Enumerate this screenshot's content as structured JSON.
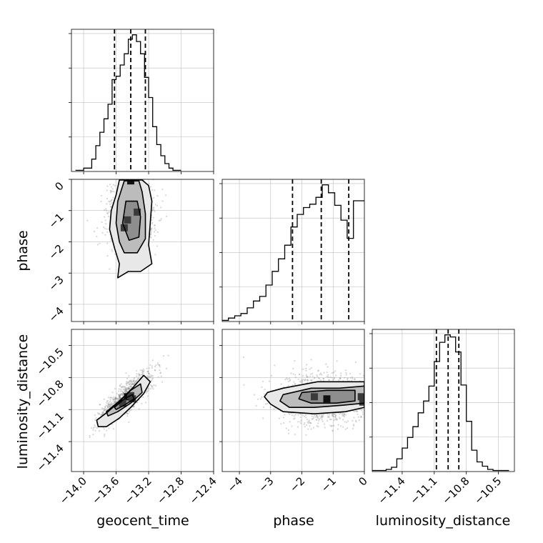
{
  "chart_data": {
    "type": "corner",
    "parameters": [
      "geocent_time",
      "phase",
      "luminosity_distance"
    ],
    "axis_labels": {
      "x": [
        "geocent_time",
        "phase",
        "luminosity_distance"
      ],
      "y": [
        "phase",
        "luminosity_distance"
      ]
    },
    "ranges": {
      "geocent_time": [
        -14.15,
        -12.4
      ],
      "phase": [
        -4.55,
        0.0
      ],
      "luminosity_distance": [
        -11.68,
        -10.35
      ]
    },
    "ticks": {
      "geocent_time": [
        -14.0,
        -13.6,
        -13.2,
        -12.8,
        -12.4
      ],
      "phase": [
        -4,
        -3,
        -2,
        -1,
        0
      ],
      "luminosity_distance": [
        -11.4,
        -11.1,
        -10.8,
        -10.5
      ]
    },
    "tick_labels": {
      "geocent_time": [
        "−14.0",
        "−13.6",
        "−13.2",
        "−12.8",
        "−12.4"
      ],
      "phase": [
        "−4",
        "−3",
        "−2",
        "−1",
        "0"
      ],
      "luminosity_distance": [
        "−11.4",
        "−11.1",
        "−10.8",
        "−10.5"
      ]
    },
    "quantiles": {
      "geocent_time": [
        -13.62,
        -13.42,
        -13.24
      ],
      "phase": [
        -2.3,
        -1.38,
        -0.5
      ],
      "luminosity_distance": [
        -11.08,
        -10.97,
        -10.87
      ]
    },
    "histograms": {
      "geocent_time": {
        "edges": [
          -14.1,
          -14.0,
          -13.9,
          -13.85,
          -13.8,
          -13.75,
          -13.7,
          -13.65,
          -13.6,
          -13.55,
          -13.5,
          -13.45,
          -13.4,
          -13.35,
          -13.3,
          -13.25,
          -13.2,
          -13.15,
          -13.1,
          -13.05,
          -13.0,
          -12.95,
          -12.9,
          -12.8
        ],
        "counts": [
          1,
          3,
          11,
          23,
          35,
          47,
          60,
          82,
          85,
          95,
          105,
          118,
          122,
          116,
          105,
          84,
          66,
          40,
          24,
          14,
          7,
          3,
          1
        ]
      },
      "phase": {
        "edges": [
          -4.55,
          -4.35,
          -4.15,
          -3.95,
          -3.75,
          -3.55,
          -3.35,
          -3.15,
          -2.95,
          -2.75,
          -2.55,
          -2.35,
          -2.15,
          -1.95,
          -1.75,
          -1.55,
          -1.35,
          -1.15,
          -0.95,
          -0.75,
          -0.55,
          -0.35,
          0.0
        ],
        "counts": [
          1,
          3,
          5,
          7,
          12,
          18,
          22,
          32,
          44,
          55,
          67,
          83,
          94,
          100,
          103,
          109,
          120,
          113,
          102,
          89,
          73,
          106
        ]
      },
      "luminosity_distance": {
        "edges": [
          -11.68,
          -11.55,
          -11.5,
          -11.45,
          -11.4,
          -11.35,
          -11.3,
          -11.25,
          -11.2,
          -11.15,
          -11.1,
          -11.05,
          -11.0,
          -10.95,
          -10.9,
          -10.85,
          -10.8,
          -10.75,
          -10.7,
          -10.65,
          -10.6,
          -10.55,
          -10.5,
          -10.4
        ],
        "counts": [
          1,
          2,
          4,
          12,
          22,
          32,
          42,
          55,
          66,
          80,
          103,
          121,
          128,
          126,
          112,
          81,
          47,
          20,
          9,
          5,
          2,
          1,
          1
        ]
      }
    },
    "pairs": [
      {
        "x": "geocent_time",
        "y": "phase",
        "correlation": 0.0,
        "sigma": [
          0.14,
          0.56
        ],
        "mean": [
          -13.42,
          -1.25
        ],
        "hot_cells": [
          [
            -13.42,
            -0.05
          ],
          [
            -13.34,
            -1.05
          ],
          [
            -13.46,
            -1.3
          ],
          [
            -13.5,
            -1.55
          ]
        ],
        "contours": [
          [
            [
              -13.56,
              -0.02
            ],
            [
              -13.6,
              -0.5
            ],
            [
              -13.66,
              -1.0
            ],
            [
              -13.68,
              -1.6
            ],
            [
              -13.62,
              -2.2
            ],
            [
              -13.56,
              -2.7
            ],
            [
              -13.58,
              -3.15
            ],
            [
              -13.45,
              -2.95
            ],
            [
              -13.3,
              -2.95
            ],
            [
              -13.16,
              -2.7
            ],
            [
              -13.2,
              -2.1
            ],
            [
              -13.18,
              -1.4
            ],
            [
              -13.16,
              -0.7
            ],
            [
              -13.2,
              -0.2
            ],
            [
              -13.28,
              -0.02
            ]
          ],
          [
            [
              -13.5,
              -0.05
            ],
            [
              -13.58,
              -0.7
            ],
            [
              -13.6,
              -1.4
            ],
            [
              -13.56,
              -2.0
            ],
            [
              -13.5,
              -2.35
            ],
            [
              -13.34,
              -2.35
            ],
            [
              -13.24,
              -1.9
            ],
            [
              -13.24,
              -1.1
            ],
            [
              -13.28,
              -0.4
            ],
            [
              -13.32,
              -0.05
            ]
          ],
          [
            [
              -13.48,
              -0.7
            ],
            [
              -13.52,
              -1.4
            ],
            [
              -13.44,
              -1.95
            ],
            [
              -13.32,
              -1.85
            ],
            [
              -13.3,
              -1.2
            ],
            [
              -13.34,
              -0.7
            ]
          ]
        ]
      },
      {
        "x": "geocent_time",
        "y": "luminosity_distance",
        "correlation": 0.85,
        "sigma": [
          0.16,
          0.12
        ],
        "mean": [
          -13.48,
          -11.0
        ],
        "hot_cells": [
          [
            -13.46,
            -10.98
          ],
          [
            -13.42,
            -10.97
          ],
          [
            -13.52,
            -11.04
          ],
          [
            -13.4,
            -11.0
          ]
        ],
        "contours": [
          [
            [
              -13.84,
              -11.2
            ],
            [
              -13.7,
              -11.12
            ],
            [
              -13.55,
              -11.02
            ],
            [
              -13.4,
              -10.9
            ],
            [
              -13.26,
              -10.78
            ],
            [
              -13.18,
              -10.84
            ],
            [
              -13.26,
              -10.95
            ],
            [
              -13.42,
              -11.08
            ],
            [
              -13.56,
              -11.18
            ],
            [
              -13.72,
              -11.26
            ],
            [
              -13.82,
              -11.26
            ]
          ],
          [
            [
              -13.72,
              -11.12
            ],
            [
              -13.56,
              -11.02
            ],
            [
              -13.42,
              -10.92
            ],
            [
              -13.3,
              -10.86
            ],
            [
              -13.28,
              -10.94
            ],
            [
              -13.42,
              -11.04
            ],
            [
              -13.58,
              -11.12
            ],
            [
              -13.7,
              -11.16
            ]
          ],
          [
            [
              -13.62,
              -11.08
            ],
            [
              -13.5,
              -11.0
            ],
            [
              -13.4,
              -10.96
            ],
            [
              -13.38,
              -11.0
            ],
            [
              -13.5,
              -11.06
            ],
            [
              -13.6,
              -11.1
            ]
          ]
        ]
      },
      {
        "x": "phase",
        "y": "luminosity_distance",
        "correlation": 0.0,
        "sigma": [
          0.75,
          0.12
        ],
        "mean": [
          -1.3,
          -11.0
        ],
        "hot_cells": [
          [
            -1.2,
            -11.0
          ],
          [
            -1.6,
            -10.98
          ],
          [
            -0.1,
            -10.98
          ],
          [
            -0.05,
            -11.03
          ]
        ],
        "contours": [
          [
            [
              0.0,
              -10.84
            ],
            [
              -0.6,
              -10.84
            ],
            [
              -1.5,
              -10.84
            ],
            [
              -2.6,
              -10.9
            ],
            [
              -3.1,
              -10.94
            ],
            [
              -3.2,
              -10.98
            ],
            [
              -3.0,
              -11.05
            ],
            [
              -2.6,
              -11.12
            ],
            [
              -1.6,
              -11.14
            ],
            [
              -0.6,
              -11.12
            ],
            [
              0.0,
              -11.08
            ]
          ],
          [
            [
              0.0,
              -10.88
            ],
            [
              -0.8,
              -10.9
            ],
            [
              -1.7,
              -10.9
            ],
            [
              -2.6,
              -10.96
            ],
            [
              -2.7,
              -11.02
            ],
            [
              -2.4,
              -11.08
            ],
            [
              -1.6,
              -11.08
            ],
            [
              -0.7,
              -11.06
            ],
            [
              0.0,
              -11.04
            ]
          ],
          [
            [
              -0.3,
              -10.92
            ],
            [
              -1.2,
              -10.92
            ],
            [
              -2.0,
              -10.94
            ],
            [
              -2.1,
              -11.0
            ],
            [
              -1.7,
              -11.04
            ],
            [
              -0.9,
              -11.04
            ],
            [
              -0.3,
              -11.02
            ]
          ]
        ]
      }
    ]
  }
}
